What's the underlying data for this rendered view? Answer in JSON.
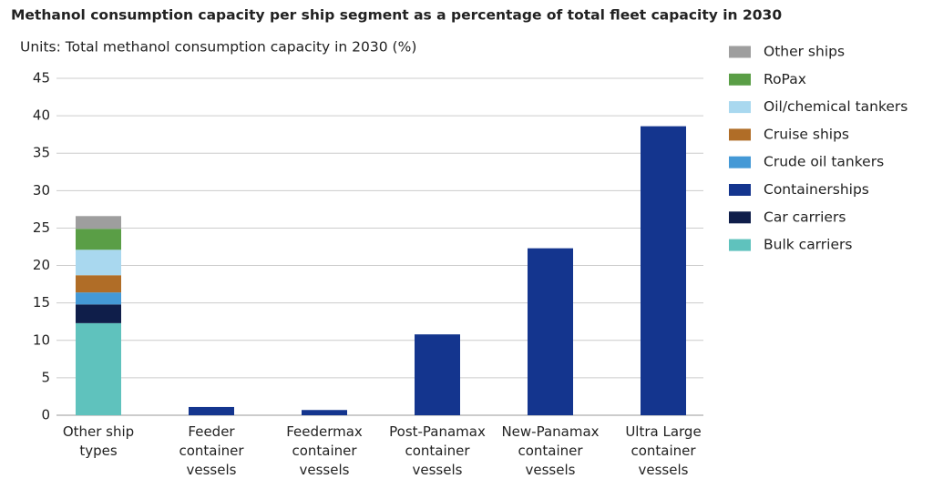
{
  "chart_data": {
    "type": "bar",
    "stacked": true,
    "title": "Methanol consumption capacity per ship segment as a percentage of total fleet capacity in 2030",
    "subtitle": "Units: Total methanol consumption capacity in 2030 (%)",
    "categories": [
      "Other ship types",
      "Feeder container vessels",
      "Feedermax container vessels",
      "Post-Panamax container vessels",
      "New-Panamax container vessels",
      "Ultra Large container vessels"
    ],
    "series": [
      {
        "name": "Bulk carriers",
        "color": "#5fc2bd",
        "values": [
          12.3,
          null,
          null,
          null,
          null,
          null
        ]
      },
      {
        "name": "Car carriers",
        "color": "#0f1e4a",
        "values": [
          2.5,
          null,
          null,
          null,
          null,
          null
        ]
      },
      {
        "name": "Containerships",
        "color": "#14358e",
        "values": [
          null,
          1.1,
          0.7,
          10.8,
          22.3,
          38.6
        ]
      },
      {
        "name": "Crude oil tankers",
        "color": "#4499d6",
        "values": [
          1.6,
          null,
          null,
          null,
          null,
          null
        ]
      },
      {
        "name": "Cruise ships",
        "color": "#b06d27",
        "values": [
          2.3,
          null,
          null,
          null,
          null,
          null
        ]
      },
      {
        "name": "Oil/chemical tankers",
        "color": "#a9d8ef",
        "values": [
          3.4,
          null,
          null,
          null,
          null,
          null
        ]
      },
      {
        "name": "RoPax",
        "color": "#5a9e46",
        "values": [
          2.8,
          null,
          null,
          null,
          null,
          null
        ]
      },
      {
        "name": "Other ships",
        "color": "#9e9e9e",
        "values": [
          1.7,
          null,
          null,
          null,
          null,
          null
        ]
      }
    ],
    "ylim": [
      0,
      45
    ],
    "yticks": [
      0,
      5,
      10,
      15,
      20,
      25,
      30,
      35,
      40,
      45
    ],
    "grid": true,
    "legend": "right"
  }
}
